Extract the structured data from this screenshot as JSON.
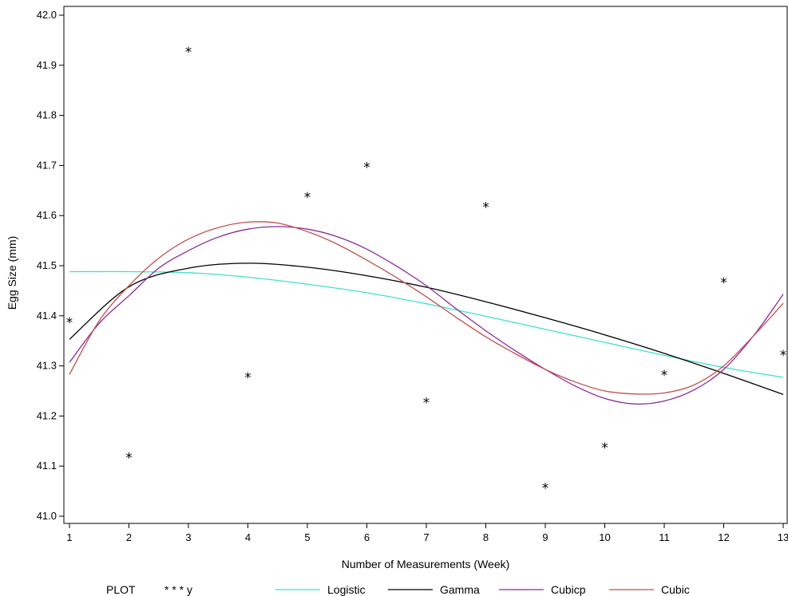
{
  "chart_data": {
    "type": "scatter",
    "title": "",
    "xlabel": "Number of Measurements (Week)",
    "ylabel": "Egg Size (mm)",
    "xlim": [
      1,
      13
    ],
    "ylim": [
      41.0,
      42.0
    ],
    "x_ticks": [
      "1",
      "2",
      "3",
      "4",
      "5",
      "6",
      "7",
      "8",
      "9",
      "10",
      "11",
      "12",
      "13"
    ],
    "y_ticks": [
      "41.0",
      "41.1",
      "41.2",
      "41.3",
      "41.4",
      "41.5",
      "41.6",
      "41.7",
      "41.8",
      "41.9",
      "42.0"
    ],
    "grid": false,
    "legend_position": "bottom",
    "legend": {
      "title": "PLOT",
      "marker_label": "* * * y"
    },
    "points": {
      "name": "y",
      "x": [
        1,
        2,
        3,
        4,
        5,
        6,
        7,
        8,
        9,
        10,
        11,
        12,
        13
      ],
      "y": [
        41.39,
        41.12,
        41.93,
        41.28,
        41.64,
        41.7,
        41.23,
        41.62,
        41.06,
        41.14,
        41.285,
        41.47,
        41.325
      ]
    },
    "series": [
      {
        "name": "Logistic",
        "color": "#40e0d0",
        "x": [
          1,
          2,
          3,
          4,
          5,
          6,
          7,
          8,
          9,
          10,
          11,
          12,
          13
        ],
        "y": [
          41.488,
          41.488,
          41.486,
          41.477,
          41.463,
          41.446,
          41.424,
          41.399,
          41.373,
          41.347,
          41.321,
          41.297,
          41.277
        ]
      },
      {
        "name": "Gamma",
        "color": "#000000",
        "x": [
          1,
          2,
          3,
          4,
          5,
          6,
          7,
          8,
          9,
          10,
          11,
          12,
          13
        ],
        "y": [
          41.353,
          41.458,
          41.495,
          41.505,
          41.497,
          41.48,
          41.457,
          41.428,
          41.396,
          41.362,
          41.325,
          41.285,
          41.243
        ]
      },
      {
        "name": "Cubicp",
        "color": "#8b2a9b",
        "x": [
          1,
          1.5,
          2,
          2.5,
          3,
          3.5,
          4,
          4.5,
          5,
          5.5,
          6,
          6.5,
          7,
          7.5,
          8,
          8.5,
          9,
          9.5,
          10,
          10.5,
          11,
          11.5,
          12,
          12.5,
          13
        ],
        "y": [
          41.307,
          41.385,
          41.44,
          41.495,
          41.53,
          41.557,
          41.573,
          41.578,
          41.573,
          41.558,
          41.533,
          41.499,
          41.46,
          41.414,
          41.37,
          41.33,
          41.293,
          41.26,
          41.235,
          41.224,
          41.23,
          41.252,
          41.293,
          41.36,
          41.443
        ]
      },
      {
        "name": "Cubic",
        "color": "#c0504d",
        "x": [
          1,
          1.5,
          2,
          2.5,
          3,
          3.5,
          4,
          4.5,
          5,
          5.5,
          6,
          6.5,
          7,
          7.5,
          8,
          8.5,
          9,
          9.5,
          10,
          10.5,
          11,
          11.5,
          12,
          12.5,
          13
        ],
        "y": [
          41.283,
          41.39,
          41.46,
          41.515,
          41.553,
          41.576,
          41.587,
          41.585,
          41.568,
          41.543,
          41.511,
          41.476,
          41.438,
          41.397,
          41.358,
          41.324,
          41.293,
          41.268,
          41.25,
          41.244,
          41.246,
          41.262,
          41.3,
          41.36,
          41.425
        ]
      }
    ]
  }
}
